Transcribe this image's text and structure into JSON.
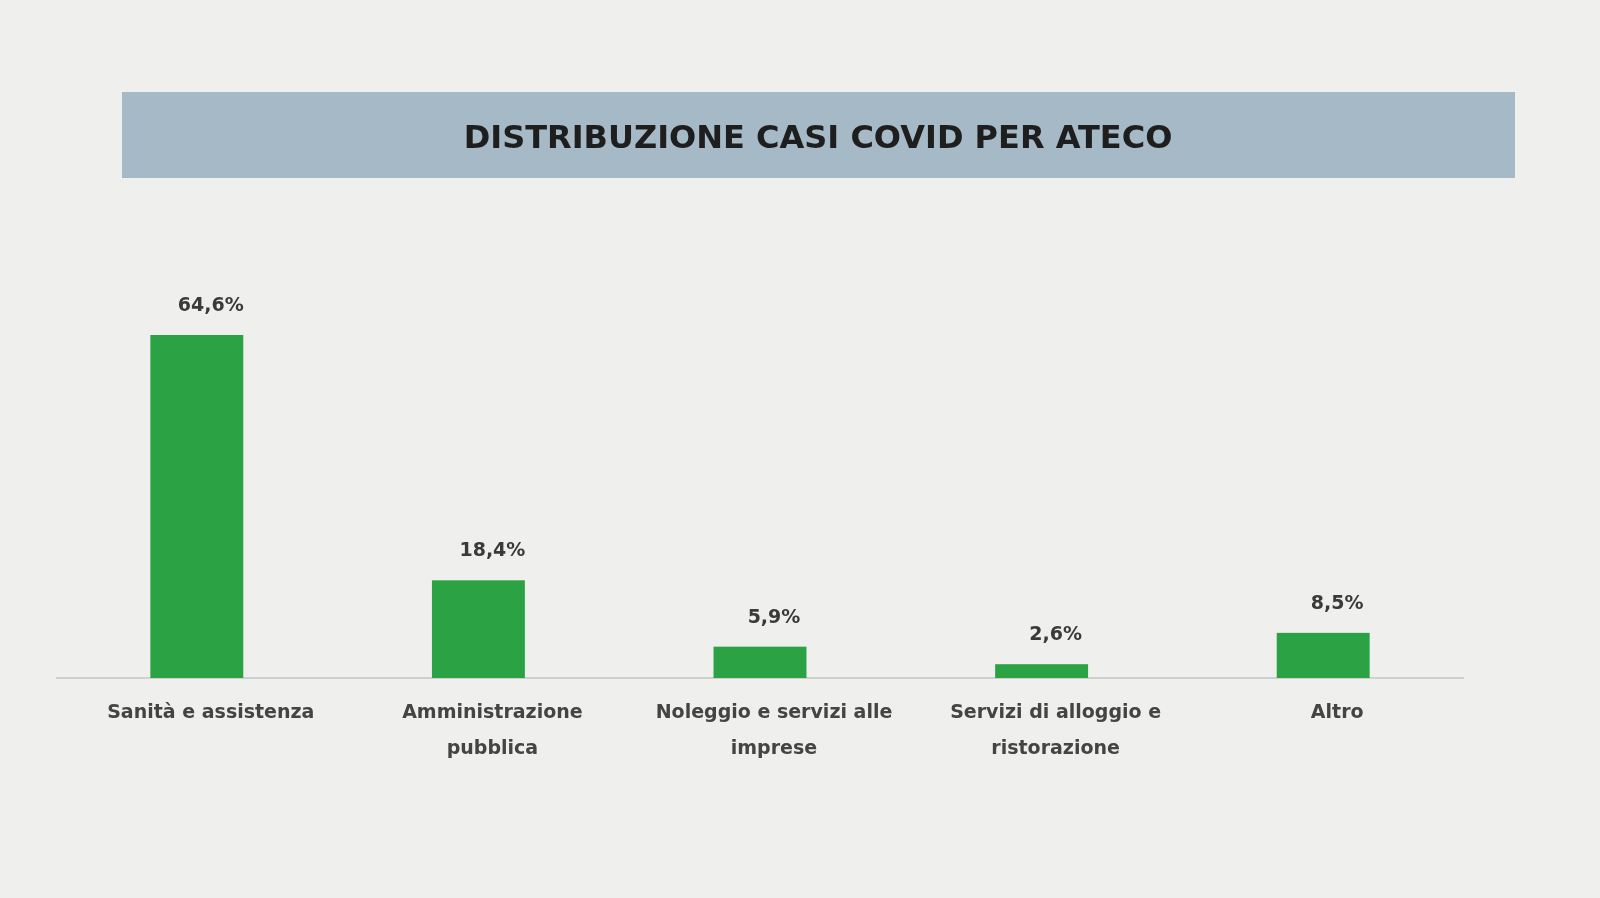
{
  "chart_data": {
    "type": "bar",
    "title": "DISTRIBUZIONE CASI COVID PER ATECO",
    "categories": [
      "Sanità e assistenza",
      "Amministrazione pubblica",
      "Noleggio e servizi alle imprese",
      "Servizi di alloggio e ristorazione",
      "Altro"
    ],
    "values": [
      64.6,
      18.4,
      5.9,
      2.6,
      8.5
    ],
    "color": "#2ba345",
    "value_labels": [
      "64,6%",
      "18,4%",
      "5,9%",
      "2,6%",
      "8,5%"
    ]
  }
}
